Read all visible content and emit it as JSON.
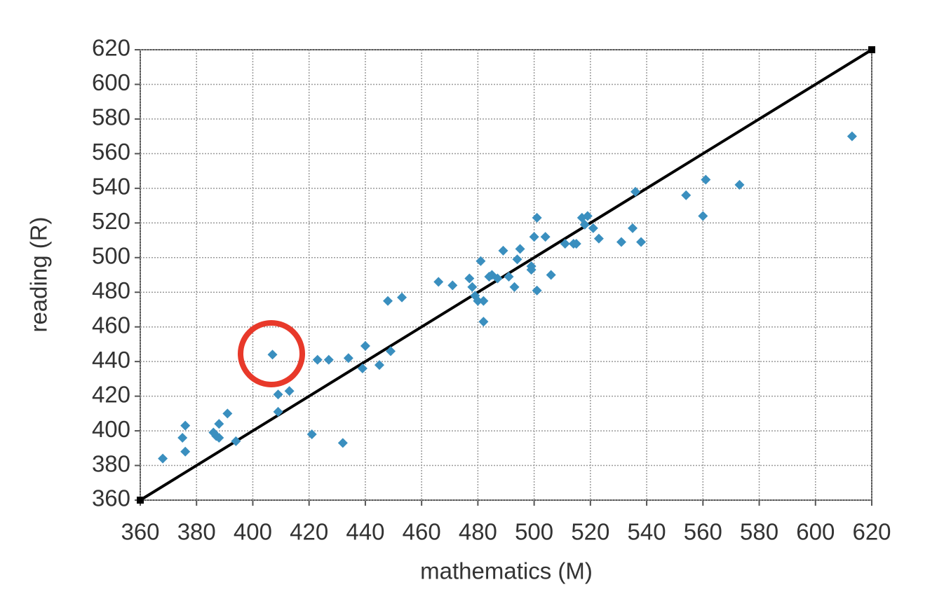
{
  "chart_data": {
    "type": "scatter",
    "xlabel": "mathematics (M)",
    "ylabel": "reading (R)",
    "x": [
      368,
      376,
      375,
      376,
      386,
      388,
      387,
      388,
      391,
      394,
      407,
      409,
      413,
      409,
      421,
      423,
      427,
      434,
      432,
      439,
      440,
      445,
      449,
      448,
      453,
      466,
      471,
      477,
      478,
      479,
      481,
      480,
      482,
      482,
      484,
      485,
      487,
      489,
      491,
      493,
      494,
      495,
      499,
      499,
      500,
      501,
      501,
      504,
      506,
      511,
      514,
      515,
      517,
      519,
      518,
      521,
      523,
      531,
      535,
      536,
      538,
      554,
      560,
      561,
      573,
      613
    ],
    "values": [
      384,
      403,
      396,
      388,
      399,
      404,
      397,
      396,
      410,
      394,
      444,
      421,
      423,
      411,
      398,
      441,
      441,
      442,
      393,
      436,
      449,
      438,
      446,
      475,
      477,
      486,
      484,
      488,
      483,
      478,
      498,
      475,
      475,
      463,
      489,
      490,
      488,
      504,
      489,
      483,
      499,
      505,
      495,
      493,
      512,
      523,
      481,
      512,
      490,
      508,
      508,
      508,
      523,
      524,
      519,
      517,
      511,
      509,
      517,
      538,
      509,
      536,
      524,
      545,
      542,
      570
    ],
    "color": "#3a8fbf",
    "reference_line": {
      "x": [
        360,
        620
      ],
      "y": [
        360,
        620
      ],
      "color": "#000000"
    },
    "xlim": [
      360,
      620
    ],
    "ylim": [
      360,
      620
    ],
    "xticks": [
      360,
      380,
      400,
      420,
      440,
      460,
      480,
      500,
      520,
      540,
      560,
      580,
      600,
      620
    ],
    "yticks": [
      360,
      380,
      400,
      420,
      440,
      460,
      480,
      500,
      520,
      540,
      560,
      580,
      600,
      620
    ],
    "grid": true
  }
}
